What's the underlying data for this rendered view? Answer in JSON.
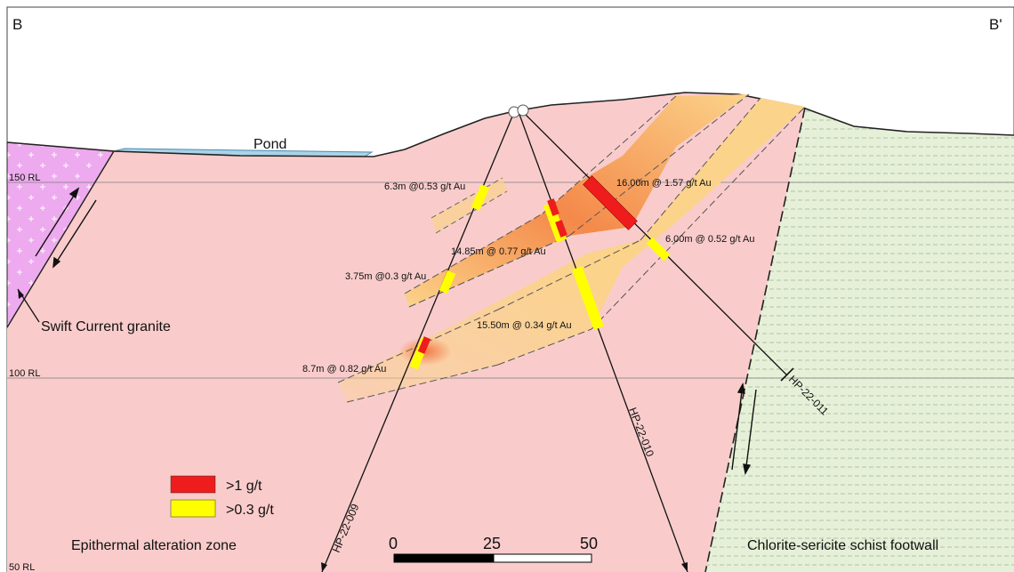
{
  "section": {
    "start_label": "B",
    "end_label": "B'"
  },
  "rl_lines": [
    {
      "label": "150 RL"
    },
    {
      "label": "100 RL"
    },
    {
      "label": "50 RL"
    }
  ],
  "units": {
    "pond": "Pond",
    "granite": "Swift Current granite",
    "alteration": "Epithermal alteration zone",
    "schist": "Chlorite-sericite schist footwall"
  },
  "intercepts": [
    {
      "text": "6.3m @0.53 g/t Au"
    },
    {
      "text": "16.00m @ 1.57 g/t Au"
    },
    {
      "text": "14.85m @ 0.77 g/t Au"
    },
    {
      "text": "6.00m @ 0.52 g/t Au"
    },
    {
      "text": "3.75m @0.3 g/t Au"
    },
    {
      "text": "15.50m @ 0.34 g/t Au"
    },
    {
      "text": "8.7m @ 0.82 g/t Au"
    }
  ],
  "drillholes": [
    {
      "id": "HP-22-009"
    },
    {
      "id": "HP-22-010"
    },
    {
      "id": "HP-22-011"
    }
  ],
  "legend": [
    {
      "label": ">1 g/t",
      "color": "#ee1c1c"
    },
    {
      "label": ">0.3 g/t",
      "color": "#ffff00"
    }
  ],
  "scale_bar": {
    "ticks": [
      "0",
      "25",
      "50"
    ]
  },
  "colors": {
    "alteration_fill": "#f9cccb",
    "granite_fill": "#eeaaee",
    "schist_fill": "#e6f0d8",
    "pond_fill": "#a9d3e8",
    "zone_fill": "#fbd38a",
    "high_grade_fill": "#f4894a"
  }
}
